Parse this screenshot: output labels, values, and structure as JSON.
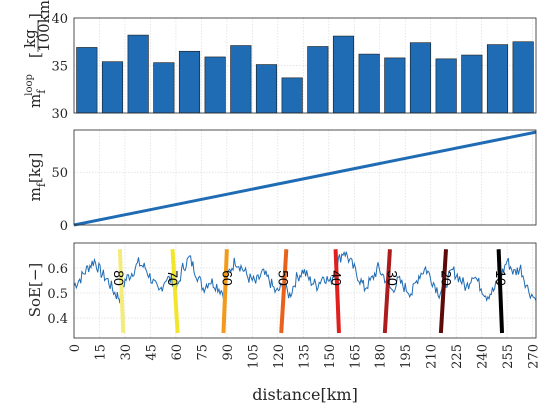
{
  "chart_data": [
    {
      "type": "bar",
      "ylabel_main": "m",
      "ylabel_sub": "f",
      "ylabel_sup": "loop",
      "ylabel_unit_num": "kg",
      "ylabel_unit_den": "100km",
      "ylim": [
        30,
        40
      ],
      "yticks": [
        30,
        35,
        40
      ],
      "color": "#1f6cb4",
      "values": [
        36.9,
        35.4,
        38.2,
        35.3,
        36.5,
        35.9,
        37.1,
        35.1,
        33.7,
        37.0,
        38.1,
        36.2,
        35.8,
        37.4,
        35.7,
        36.1,
        37.2,
        37.5
      ],
      "grid": true
    },
    {
      "type": "line",
      "ylabel_main": "m",
      "ylabel_sub": "f",
      "ylabel_unit": "[kg]",
      "ylim": [
        0,
        90
      ],
      "yticks": [
        0,
        50
      ],
      "xlim": [
        0,
        272
      ],
      "x": [
        0,
        272
      ],
      "y": [
        0,
        88
      ],
      "color": "#1f6cb4",
      "grid": true
    },
    {
      "type": "line",
      "ylabel": "SoE[−]",
      "xlabel": "distance[km]",
      "xlim": [
        0,
        272
      ],
      "ylim": [
        0.32,
        0.7
      ],
      "yticks": [
        0.4,
        0.5,
        0.6
      ],
      "xticks": [
        0,
        15,
        30,
        45,
        60,
        75,
        90,
        105,
        120,
        135,
        150,
        165,
        180,
        195,
        210,
        225,
        240,
        255,
        270
      ],
      "series_color": "#1f6cb4",
      "soe_x": [
        0,
        4,
        8,
        12,
        16,
        20,
        24,
        27,
        30,
        34,
        38,
        42,
        46,
        50,
        54,
        58,
        60,
        64,
        68,
        72,
        76,
        80,
        84,
        88,
        91,
        95,
        99,
        103,
        107,
        111,
        115,
        119,
        123,
        127,
        131,
        135,
        139,
        143,
        147,
        151,
        155,
        159,
        163,
        167,
        171,
        175,
        179,
        183,
        187,
        191,
        195,
        199,
        203,
        207,
        211,
        215,
        219,
        223,
        227,
        231,
        235,
        239,
        243,
        247,
        251,
        255,
        259,
        263,
        267,
        272
      ],
      "soe_y": [
        0.53,
        0.56,
        0.6,
        0.63,
        0.58,
        0.55,
        0.5,
        0.48,
        0.55,
        0.58,
        0.62,
        0.6,
        0.55,
        0.5,
        0.56,
        0.55,
        0.5,
        0.6,
        0.64,
        0.58,
        0.52,
        0.55,
        0.53,
        0.5,
        0.58,
        0.63,
        0.6,
        0.56,
        0.54,
        0.58,
        0.55,
        0.5,
        0.53,
        0.49,
        0.56,
        0.59,
        0.55,
        0.53,
        0.57,
        0.54,
        0.62,
        0.67,
        0.62,
        0.57,
        0.52,
        0.55,
        0.6,
        0.56,
        0.51,
        0.55,
        0.52,
        0.5,
        0.57,
        0.6,
        0.55,
        0.5,
        0.54,
        0.59,
        0.56,
        0.52,
        0.58,
        0.53,
        0.49,
        0.51,
        0.56,
        0.63,
        0.58,
        0.6,
        0.52,
        0.47
      ],
      "grid": true,
      "markers": [
        {
          "label": "80",
          "x": 27,
          "color": "#f4ec7a",
          "x_top": 27,
          "x_bottom": 29
        },
        {
          "label": "70",
          "x": 59,
          "color": "#f2e52b",
          "x_top": 58,
          "x_bottom": 61
        },
        {
          "label": "60",
          "x": 91,
          "color": "#f29a19",
          "x_top": 90,
          "x_bottom": 88
        },
        {
          "label": "50",
          "x": 124,
          "color": "#e8621c",
          "x_top": 125,
          "x_bottom": 122
        },
        {
          "label": "40",
          "x": 155,
          "color": "#e0201e",
          "x_top": 154,
          "x_bottom": 156
        },
        {
          "label": "30",
          "x": 188,
          "color": "#ad1d1d",
          "x_top": 186,
          "x_bottom": 183
        },
        {
          "label": "20",
          "x": 220,
          "color": "#5c0a0a",
          "x_top": 219,
          "x_bottom": 216
        },
        {
          "label": "10",
          "x": 252,
          "color": "#000000",
          "x_top": 250,
          "x_bottom": 252
        }
      ]
    }
  ]
}
